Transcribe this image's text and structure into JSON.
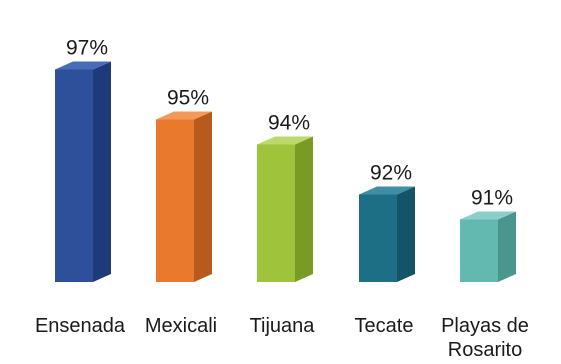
{
  "chart_data": {
    "type": "bar",
    "categories": [
      "Ensenada",
      "Mexicali",
      "Tijuana",
      "Tecate",
      "Playas de Rosarito"
    ],
    "category_lines": [
      [
        "Ensenada"
      ],
      [
        "Mexicali"
      ],
      [
        "Tijuana"
      ],
      [
        "Tecate"
      ],
      [
        "Playas de",
        "Rosarito"
      ]
    ],
    "values": [
      97,
      95,
      94,
      92,
      91
    ],
    "value_labels": [
      "97%",
      "95%",
      "94%",
      "92%",
      "91%"
    ],
    "unit": "%",
    "title": "",
    "xlabel": "",
    "ylabel": "",
    "ylim": [
      88.5,
      97
    ],
    "grid": false,
    "legend": "none",
    "style": "3d",
    "colors": [
      {
        "front": "#2e4f9a",
        "side": "#1f3a78",
        "top": "#4a6cb8"
      },
      {
        "front": "#e8792d",
        "side": "#b85a1c",
        "top": "#f29a5a"
      },
      {
        "front": "#9fc33a",
        "side": "#7a9a26",
        "top": "#bcd96a"
      },
      {
        "front": "#1d6f86",
        "side": "#155467",
        "top": "#3f8ea4"
      },
      {
        "front": "#63b8b0",
        "side": "#4a958e",
        "top": "#8ad0c9"
      }
    ]
  }
}
